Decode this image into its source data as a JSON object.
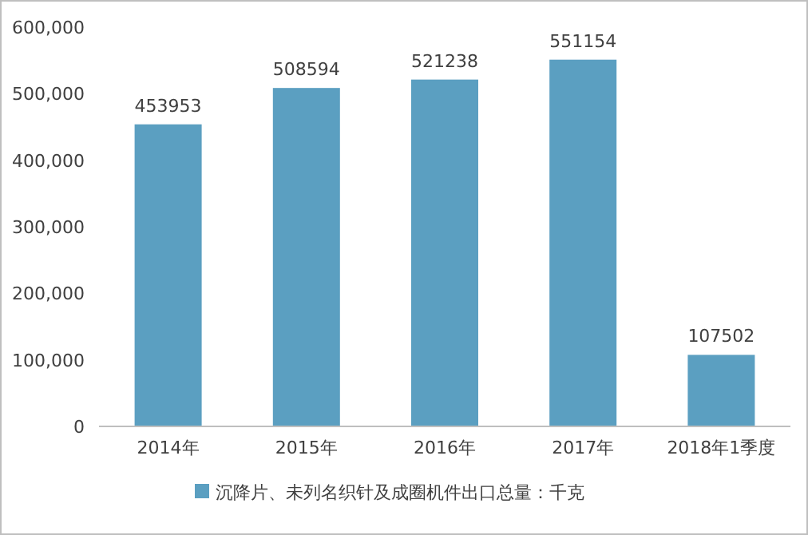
{
  "chart_data": {
    "type": "bar",
    "categories": [
      "2014年",
      "2015年",
      "2016年",
      "2017年",
      "2018年1季度"
    ],
    "series": [
      {
        "name": "沉降片、未列名织针及成圈机件出口总量：千克",
        "color": "#5b9fc1",
        "values": [
          453953,
          508594,
          521238,
          551154,
          107502
        ]
      }
    ],
    "ylim": [
      0,
      600000
    ],
    "yticks": [
      0,
      {
        "value": 100000,
        "label": "100,000"
      },
      {
        "value": 200000,
        "label": "200,000"
      },
      {
        "value": 300000,
        "label": "300,000"
      },
      {
        "value": 400000,
        "label": "400,000"
      },
      {
        "value": 500000,
        "label": "500,000"
      },
      {
        "value": 600000,
        "label": "600,000"
      }
    ],
    "data_labels": true,
    "legend": "bottom",
    "grid": false
  }
}
